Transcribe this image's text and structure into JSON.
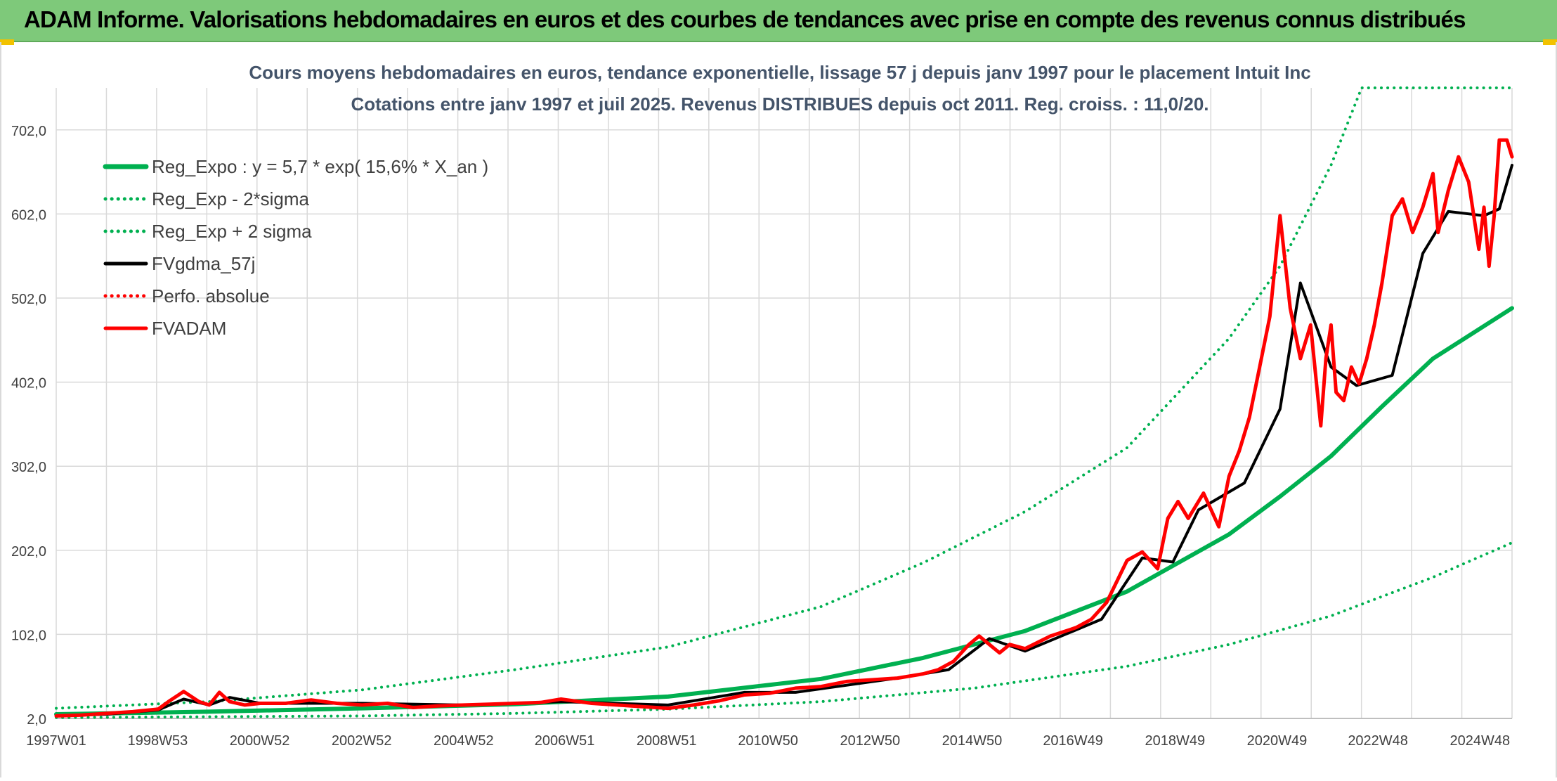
{
  "banner": {
    "title": "ADAM Informe. Valorisations hebdomadaires en euros et des courbes de tendances avec prise en compte des revenus connus distribués"
  },
  "colors": {
    "banner_bg": "#7ec97a",
    "trend_green": "#00b050",
    "moving_avg": "#000000",
    "fvadam_red": "#ff0000",
    "grid": "#d9d9d9"
  },
  "chart_data": {
    "type": "line",
    "title_line1": "Cours moyens hebdomadaires en euros, tendance exponentielle, lissage 57 j depuis janv 1997 pour le placement Intuit Inc",
    "title_line2": "Cotations entre janv 1997 et juil 2025. Revenus DISTRIBUES depuis oct 2011. Reg. croiss. : 11,0/20.",
    "x_range": [
      1997.0,
      2025.55
    ],
    "x_ticks": [
      {
        "label": "1997W01",
        "x": 1997.0
      },
      {
        "label": "1998W53",
        "x": 1998.99
      },
      {
        "label": "2000W52",
        "x": 2000.99
      },
      {
        "label": "2002W52",
        "x": 2002.99
      },
      {
        "label": "2004W52",
        "x": 2004.99
      },
      {
        "label": "2006W51",
        "x": 2006.97
      },
      {
        "label": "2008W51",
        "x": 2008.97
      },
      {
        "label": "2010W50",
        "x": 2010.96
      },
      {
        "label": "2012W50",
        "x": 2012.96
      },
      {
        "label": "2014W50",
        "x": 2014.96
      },
      {
        "label": "2016W49",
        "x": 2016.94
      },
      {
        "label": "2018W49",
        "x": 2018.94
      },
      {
        "label": "2020W49",
        "x": 2020.94
      },
      {
        "label": "2022W48",
        "x": 2022.92
      },
      {
        "label": "2024W48",
        "x": 2024.92
      }
    ],
    "y_range": [
      2.0,
      752.0
    ],
    "y_ticks": [
      {
        "label": "2,0",
        "v": 2
      },
      {
        "label": "102,0",
        "v": 102
      },
      {
        "label": "202,0",
        "v": 202
      },
      {
        "label": "302,0",
        "v": 302
      },
      {
        "label": "402,0",
        "v": 402
      },
      {
        "label": "502,0",
        "v": 502
      },
      {
        "label": "602,0",
        "v": 602
      },
      {
        "label": "702,0",
        "v": 702
      }
    ],
    "grid": true,
    "legend_position": "top-left",
    "series": [
      {
        "key": "reg",
        "name": "Reg_Expo : y = 5,7 * exp( 15,6% *  X_an )",
        "color": "#00b050",
        "style": "solid",
        "width": 6,
        "x": [
          1997.0,
          2000,
          2003,
          2006,
          2009,
          2012,
          2014,
          2016,
          2018,
          2020,
          2021,
          2022,
          2023,
          2024,
          2025.55
        ],
        "y": [
          7,
          10,
          14,
          19,
          28,
          49,
          74,
          106,
          153,
          221,
          266,
          314,
          373,
          430,
          490
        ]
      },
      {
        "key": "low",
        "name": "Reg_Exp - 2*sigma",
        "color": "#00b050",
        "style": "dotted",
        "width": 4,
        "x": [
          1997.0,
          2000,
          2003,
          2006,
          2009,
          2012,
          2015,
          2018,
          2020,
          2022,
          2024,
          2025.55
        ],
        "y": [
          3,
          4,
          5,
          8,
          13,
          22,
          38,
          64,
          90,
          124,
          170,
          211
        ]
      },
      {
        "key": "high",
        "name": "Reg_Exp + 2 sigma",
        "color": "#00b050",
        "style": "dotted",
        "width": 4,
        "x": [
          1997.0,
          2000,
          2003,
          2006,
          2009,
          2012,
          2014,
          2016,
          2018,
          2020,
          2021,
          2022,
          2022.6,
          2025.55
        ],
        "y": [
          14,
          22,
          36,
          60,
          87,
          135,
          187,
          248,
          324,
          454,
          540,
          660,
          752,
          752
        ]
      },
      {
        "key": "mma",
        "name": "FVgdma_57j",
        "color": "#000000",
        "style": "solid",
        "width": 4,
        "x": [
          1997.0,
          1998,
          1999,
          1999.5,
          2000,
          2000.4,
          2001,
          2003,
          2005,
          2006.9,
          2009,
          2010.5,
          2011.5,
          2013.5,
          2014.5,
          2015.3,
          2016,
          2017.5,
          2018.3,
          2018.9,
          2019.4,
          2020.3,
          2021.0,
          2021.4,
          2022.0,
          2022.5,
          2023.2,
          2023.8,
          2024.3,
          2025.0,
          2025.3,
          2025.55
        ],
        "y": [
          5,
          7,
          12,
          25,
          18,
          27,
          20,
          20,
          18,
          22,
          18,
          33,
          33,
          50,
          60,
          97,
          82,
          120,
          193,
          188,
          250,
          282,
          370,
          520,
          420,
          398,
          410,
          555,
          605,
          600,
          608,
          660
        ]
      },
      {
        "key": "perfo",
        "name": "Perfo. absolue",
        "color": "#ff0000",
        "style": "dotted",
        "width": 4,
        "x": [],
        "y": []
      },
      {
        "key": "fvadam",
        "name": "FVADAM",
        "color": "#ff0000",
        "style": "solid",
        "width": 5,
        "x": [
          1997.0,
          1997.5,
          1998.0,
          1998.5,
          1999.0,
          1999.2,
          1999.5,
          1999.8,
          2000.0,
          2000.2,
          2000.4,
          2000.7,
          2001.0,
          2001.5,
          2002.0,
          2002.5,
          2003.0,
          2003.5,
          2004.0,
          2004.5,
          2005.0,
          2005.5,
          2006.0,
          2006.5,
          2006.9,
          2007.5,
          2008.0,
          2008.5,
          2009.0,
          2009.5,
          2010.0,
          2010.5,
          2011.0,
          2011.5,
          2012.0,
          2012.5,
          2013.0,
          2013.5,
          2014.0,
          2014.3,
          2014.6,
          2014.9,
          2015.1,
          2015.3,
          2015.5,
          2015.7,
          2016.0,
          2016.5,
          2017.0,
          2017.3,
          2017.6,
          2018.0,
          2018.3,
          2018.6,
          2018.8,
          2019.0,
          2019.2,
          2019.5,
          2019.8,
          2020.0,
          2020.2,
          2020.4,
          2020.6,
          2020.8,
          2021.0,
          2021.2,
          2021.4,
          2021.6,
          2021.8,
          2021.9,
          2022.0,
          2022.1,
          2022.25,
          2022.4,
          2022.55,
          2022.7,
          2022.85,
          2023.0,
          2023.2,
          2023.4,
          2023.6,
          2023.8,
          2024.0,
          2024.1,
          2024.3,
          2024.5,
          2024.7,
          2024.9,
          2025.0,
          2025.1,
          2025.2,
          2025.3,
          2025.45,
          2025.55
        ],
        "y": [
          5,
          6,
          8,
          10,
          13,
          22,
          34,
          22,
          18,
          33,
          22,
          18,
          20,
          20,
          24,
          20,
          18,
          20,
          15,
          17,
          18,
          19,
          20,
          21,
          25,
          20,
          18,
          16,
          14,
          18,
          23,
          30,
          32,
          38,
          40,
          46,
          48,
          50,
          55,
          60,
          70,
          90,
          100,
          90,
          80,
          90,
          85,
          100,
          110,
          120,
          140,
          190,
          200,
          180,
          240,
          260,
          240,
          270,
          230,
          290,
          320,
          360,
          420,
          480,
          600,
          490,
          430,
          470,
          350,
          430,
          470,
          390,
          380,
          420,
          400,
          430,
          470,
          520,
          600,
          620,
          580,
          610,
          650,
          580,
          630,
          670,
          640,
          560,
          610,
          540,
          600,
          690,
          690,
          670
        ]
      }
    ]
  }
}
